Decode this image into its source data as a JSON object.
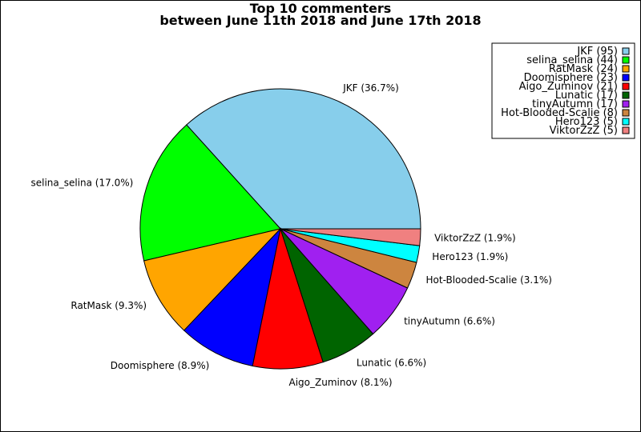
{
  "chart_data": {
    "type": "pie",
    "title": [
      "Top 10 commenters",
      "between June 11th 2018 and June 17th 2018"
    ],
    "slices": [
      {
        "name": "JKF",
        "value": 95,
        "pct_label": "JKF (36.7%)",
        "legend": "JKF (95)",
        "color": "#87ceeb"
      },
      {
        "name": "selina_selina",
        "value": 44,
        "pct_label": "selina_selina (17.0%)",
        "legend": "selina_selina (44)",
        "color": "#00ff00"
      },
      {
        "name": "RatMask",
        "value": 24,
        "pct_label": "RatMask (9.3%)",
        "legend": "RatMask (24)",
        "color": "#ffa500"
      },
      {
        "name": "Doomisphere",
        "value": 23,
        "pct_label": "Doomisphere (8.9%)",
        "legend": "Doomisphere (23)",
        "color": "#0000ff"
      },
      {
        "name": "Aigo_Zuminov",
        "value": 21,
        "pct_label": "Aigo_Zuminov (8.1%)",
        "legend": "Aigo_Zuminov (21)",
        "color": "#ff0000"
      },
      {
        "name": "Lunatic",
        "value": 17,
        "pct_label": "Lunatic (6.6%)",
        "legend": "Lunatic (17)",
        "color": "#006400"
      },
      {
        "name": "tinyAutumn",
        "value": 17,
        "pct_label": "tinyAutumn (6.6%)",
        "legend": "tinyAutumn (17)",
        "color": "#a020f0"
      },
      {
        "name": "Hot-Blooded-Scalie",
        "value": 8,
        "pct_label": "Hot-Blooded-Scalie (3.1%)",
        "legend": "Hot-Blooded-Scalie (8)",
        "color": "#cd853f"
      },
      {
        "name": "Hero123",
        "value": 5,
        "pct_label": "Hero123 (1.9%)",
        "legend": "Hero123 (5)",
        "color": "#00ffff"
      },
      {
        "name": "ViktorZzZ",
        "value": 5,
        "pct_label": "ViktorZzZ (1.9%)",
        "legend": "ViktorZzZ (5)",
        "color": "#f08080"
      }
    ],
    "start_angle": "3 o'clock",
    "direction": "counterclockwise",
    "legend_placement": "top-right"
  }
}
